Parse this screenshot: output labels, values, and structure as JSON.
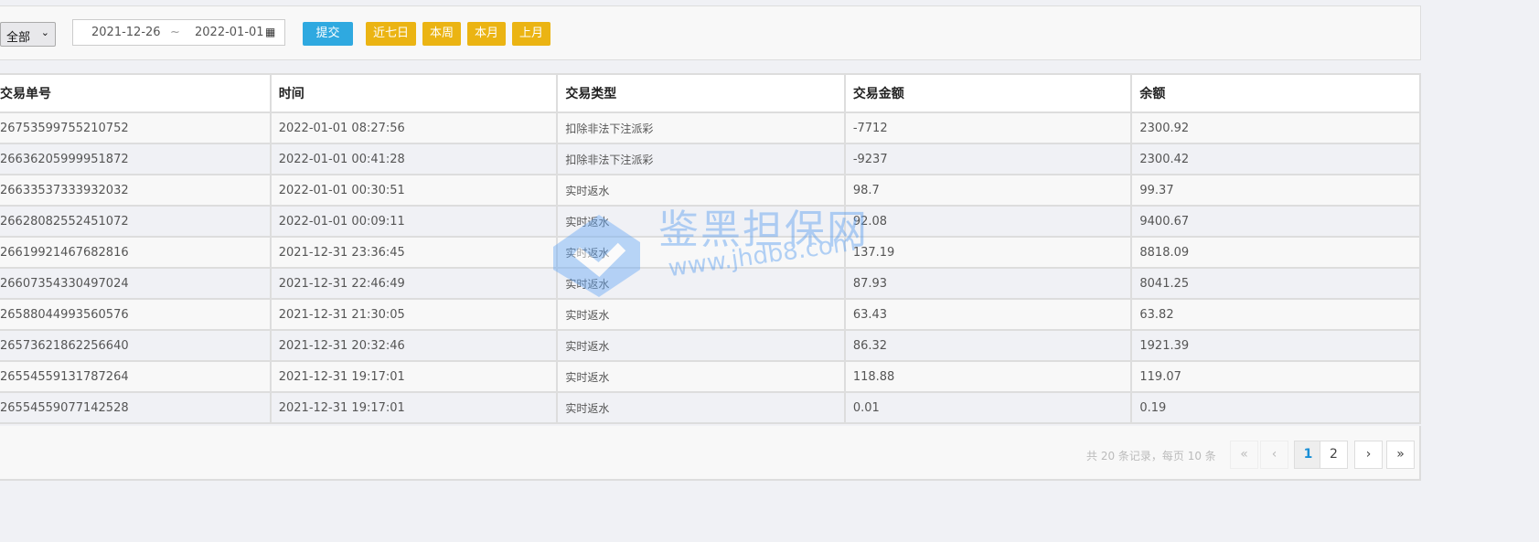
{
  "filter": {
    "type_select": "全部",
    "date_from": "2021-12-26",
    "date_sep": "~",
    "date_to": "2022-01-01",
    "submit": "提交",
    "quick": [
      "近七日",
      "本周",
      "本月",
      "上月"
    ]
  },
  "colors": {
    "submit": "#2fa9e0",
    "quick": "#ebb413"
  },
  "table": {
    "headers": [
      "交易单号",
      "时间",
      "交易类型",
      "交易金额",
      "余额"
    ],
    "rows": [
      [
        "26753599755210752",
        "2022-01-01 08:27:56",
        "扣除非法下注派彩",
        "-7712",
        "2300.92"
      ],
      [
        "26636205999951872",
        "2022-01-01 00:41:28",
        "扣除非法下注派彩",
        "-9237",
        "2300.42"
      ],
      [
        "26633537333932032",
        "2022-01-01 00:30:51",
        "实时返水",
        "98.7",
        "99.37"
      ],
      [
        "26628082552451072",
        "2022-01-01 00:09:11",
        "实时返水",
        "92.08",
        "9400.67"
      ],
      [
        "26619921467682816",
        "2021-12-31 23:36:45",
        "实时返水",
        "137.19",
        "8818.09"
      ],
      [
        "26607354330497024",
        "2021-12-31 22:46:49",
        "实时返水",
        "87.93",
        "8041.25"
      ],
      [
        "26588044993560576",
        "2021-12-31 21:30:05",
        "实时返水",
        "63.43",
        "63.82"
      ],
      [
        "26573621862256640",
        "2021-12-31 20:32:46",
        "实时返水",
        "86.32",
        "1921.39"
      ],
      [
        "26554559131787264",
        "2021-12-31 19:17:01",
        "实时返水",
        "118.88",
        "119.07"
      ],
      [
        "26554559077142528",
        "2021-12-31 19:17:01",
        "实时返水",
        "0.01",
        "0.19"
      ]
    ]
  },
  "pagination": {
    "info": "共 20 条记录，每页 10 条",
    "first": "«",
    "prev": "‹",
    "pages": [
      "1",
      "2"
    ],
    "current": "1",
    "next": "›",
    "last": "»"
  },
  "watermark": {
    "name": "鉴黑担保网",
    "url": "www.jhdb8.com"
  }
}
